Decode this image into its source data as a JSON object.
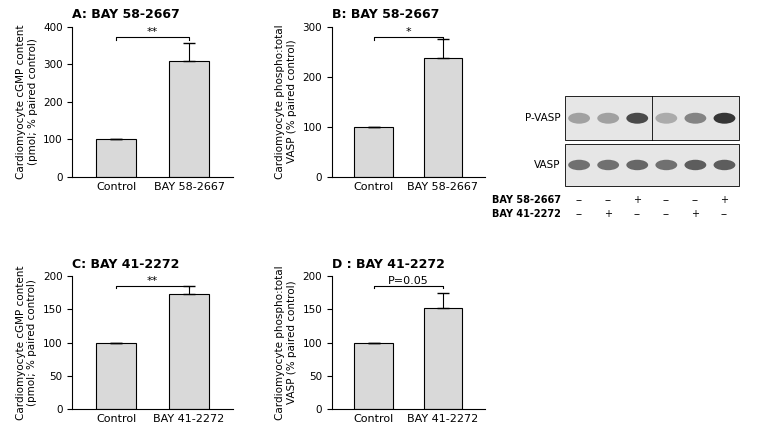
{
  "chart_data": [
    {
      "type": "bar",
      "title": "A: BAY 58-2667",
      "categories": [
        "Control",
        "BAY 58-2667"
      ],
      "values": [
        100,
        307
      ],
      "errors": [
        0,
        50
      ],
      "y_label": "Cardiomyocyte cGMP content\n(pmol; % paired control)",
      "ylim": [
        0,
        400
      ],
      "yticks": [
        0,
        100,
        200,
        300,
        400
      ],
      "annotation": "**",
      "color": "#d9d9d9",
      "grid": false
    },
    {
      "type": "bar",
      "title": "B: BAY 58-2667",
      "categories": [
        "Control",
        "BAY 58-2667"
      ],
      "values": [
        100,
        238
      ],
      "errors": [
        0,
        38
      ],
      "y_label": "Cardiomyocyte phospho:total\nVASP (% paired control)",
      "ylim": [
        0,
        300
      ],
      "yticks": [
        0,
        100,
        200,
        300
      ],
      "annotation": "*",
      "color": "#d9d9d9",
      "grid": false
    },
    {
      "type": "bar",
      "title": "C: BAY 41-2272",
      "categories": [
        "Control",
        "BAY 41-2272"
      ],
      "values": [
        100,
        173
      ],
      "errors": [
        0,
        12
      ],
      "y_label": "Cardiomyocyte cGMP content\n(pmol; % paired control)",
      "ylim": [
        0,
        200
      ],
      "yticks": [
        0,
        50,
        100,
        150,
        200
      ],
      "annotation": "**",
      "color": "#d9d9d9",
      "grid": false
    },
    {
      "type": "bar",
      "title": "D : BAY 41-2272",
      "categories": [
        "Control",
        "BAY 41-2272"
      ],
      "values": [
        100,
        152
      ],
      "errors": [
        0,
        22
      ],
      "y_label": "Cardiomyocyte phospho:total\nVASP (% paired control)",
      "ylim": [
        0,
        200
      ],
      "yticks": [
        0,
        50,
        100,
        150,
        200
      ],
      "annotation": "P=0.05",
      "color": "#d9d9d9",
      "grid": false
    }
  ],
  "blot": {
    "rows": [
      "P-VASP",
      "VASP"
    ],
    "treatments": [
      {
        "name": "BAY 58-2667",
        "lanes": [
          "--",
          "--",
          "+",
          "--",
          "--",
          "+"
        ]
      },
      {
        "name": "BAY 41-2272",
        "lanes": [
          "--",
          "+",
          "--",
          "--",
          "+",
          "--"
        ]
      }
    ]
  }
}
